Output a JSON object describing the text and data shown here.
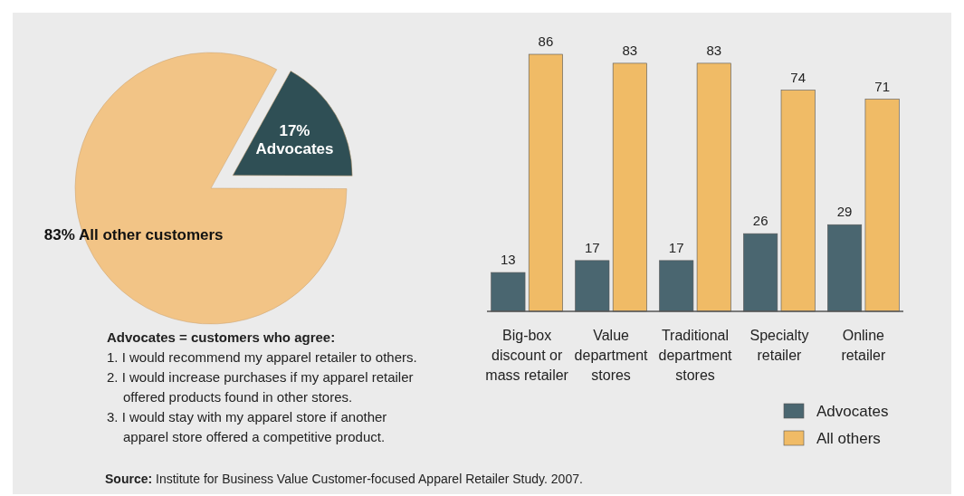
{
  "chart_data": [
    {
      "type": "pie",
      "categories": [
        "Advocates",
        "All other customers"
      ],
      "values": [
        17,
        83
      ],
      "colors": [
        "#2f4f55",
        "#f2c486"
      ],
      "value_labels": [
        "17%",
        "83%"
      ],
      "annotations": [
        "Advocates = customers who agree:",
        "1. I would recommend my apparel retailer to others.",
        "2. I would increase purchases if my apparel retailer offered products found in other stores.",
        "3. I would stay with my apparel store if another apparel store offered a competitive product."
      ]
    },
    {
      "type": "bar",
      "categories": [
        "Big-box discount or mass retailer",
        "Value department stores",
        "Traditional department stores",
        "Specialty retailer",
        "Online retailer"
      ],
      "series": [
        {
          "name": "Advocates",
          "color": "#4a6670",
          "values": [
            13,
            17,
            17,
            26,
            29
          ]
        },
        {
          "name": "All others",
          "color": "#f0bb66",
          "values": [
            86,
            83,
            83,
            74,
            71
          ]
        }
      ],
      "data_labels": true,
      "legend": "bottom right",
      "annotations": [
        "Source: Institute for Business Value Customer-focused Apparel Retailer Study. 2007."
      ]
    }
  ]
}
